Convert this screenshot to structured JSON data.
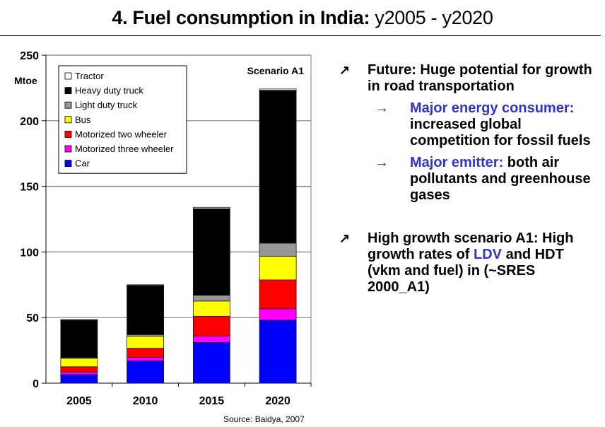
{
  "slide": {
    "title_bold": "4. Fuel consumption in India:",
    "title_normal": " y2005 - y2020",
    "source": "Source: Baidya, 2007"
  },
  "bullets": [
    {
      "icon": "pointer-arrow-icon",
      "mark": "↗",
      "text": "Future: Huge potential for growth in road transportation",
      "subs": [
        {
          "icon": "right-arrow-icon",
          "mark": "→",
          "highlight": "Major energy consumer:",
          "text": " increased global competition for fossil fuels"
        },
        {
          "icon": "right-arrow-icon",
          "mark": "→",
          "highlight": "Major emitter:",
          "text": " both air pollutants and greenhouse gases"
        }
      ]
    },
    {
      "icon": "pointer-arrow-icon",
      "mark": "↗",
      "text_before": "High growth scenario A1: High growth rates of ",
      "highlight": "LDV",
      "text_after": " and HDT (vkm and fuel) in (~SRES 2000_A1)"
    }
  ],
  "colors": {
    "accent_blue": "#3333cc"
  },
  "chart_data": {
    "type": "bar",
    "stacked": true,
    "title": "",
    "annotation": "Scenario A1",
    "xlabel": "",
    "ylabel": "Mtoe",
    "ylim": [
      0,
      250
    ],
    "yticks": [
      0,
      50,
      100,
      150,
      200,
      250
    ],
    "grid": true,
    "legend_position": "top-left",
    "categories": [
      "2005",
      "2010",
      "2015",
      "2020"
    ],
    "series": [
      {
        "name": "Car",
        "color": "#0000ff",
        "values": [
          6.5,
          17,
          31,
          48
        ]
      },
      {
        "name": "Motorized three wheeler",
        "color": "#ff00ff",
        "values": [
          2,
          2.6,
          5,
          8.7
        ]
      },
      {
        "name": "Motorized two wheeler",
        "color": "#ff0000",
        "values": [
          4,
          7,
          15,
          22
        ]
      },
      {
        "name": "Bus",
        "color": "#ffff00",
        "values": [
          6.5,
          9.3,
          11.6,
          18
        ]
      },
      {
        "name": "Light duty truck",
        "color": "#969696",
        "values": [
          0.5,
          1.1,
          4.4,
          10
        ]
      },
      {
        "name": "Heavy duty truck",
        "color": "#000000",
        "values": [
          28.5,
          37.5,
          66,
          116.5
        ]
      },
      {
        "name": "Tractor",
        "color": "#ffffff",
        "values": [
          0.5,
          0.5,
          1,
          1
        ]
      }
    ],
    "legend_order": [
      "Tractor",
      "Heavy duty truck",
      "Light duty truck",
      "Bus",
      "Motorized two wheeler",
      "Motorized three wheeler",
      "Car"
    ]
  }
}
